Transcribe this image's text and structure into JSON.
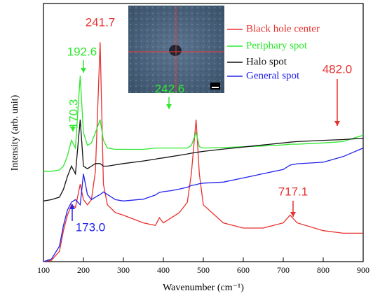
{
  "chart_data": {
    "type": "line",
    "x_label": "Wavenumber (cm⁻¹)",
    "y_label": "Intensity (arb. unit)",
    "x": [
      100,
      120,
      140,
      150,
      160,
      170,
      180,
      192,
      200,
      210,
      220,
      230,
      241.7,
      250,
      260,
      280,
      300,
      350,
      380,
      390,
      400,
      420,
      440,
      460,
      470,
      482,
      490,
      500,
      550,
      600,
      650,
      700,
      717,
      735,
      800,
      850,
      900
    ],
    "series": [
      {
        "name": "Black hole center",
        "color": "#e8312f",
        "values": [
          0,
          0.5,
          4,
          12,
          18,
          22,
          21,
          30,
          24,
          22,
          24,
          35,
          85,
          30,
          22,
          19,
          18,
          15,
          14,
          17,
          15,
          17,
          19,
          23,
          34,
          55,
          34,
          22,
          15,
          13,
          13,
          15,
          18,
          15,
          12,
          11,
          11
        ]
      },
      {
        "name": "Periphary spot",
        "color": "#2ee82e",
        "values": [
          35,
          35,
          35.5,
          37,
          41,
          47,
          44,
          72,
          50,
          45,
          46,
          50,
          55,
          47,
          44,
          43.5,
          43.5,
          43.5,
          44,
          44,
          44,
          44,
          44,
          44,
          45,
          50,
          44.5,
          44,
          44.2,
          44.5,
          44.8,
          45.2,
          45.5,
          45.5,
          46,
          46.5,
          49
        ]
      },
      {
        "name": "Halo spot",
        "color": "#111111",
        "values": [
          23.5,
          24,
          25,
          28,
          33,
          37,
          34,
          55,
          37,
          36,
          37,
          38,
          38,
          37,
          37,
          37.5,
          38,
          39,
          39.7,
          40,
          40.2,
          40.7,
          41.2,
          41.7,
          42,
          42.3,
          42.5,
          42.7,
          43.6,
          44.4,
          45.2,
          46,
          46.3,
          46.5,
          47,
          47.3,
          47.8
        ]
      },
      {
        "name": "General spot",
        "color": "#2222ee",
        "values": [
          0,
          1,
          6,
          14,
          20,
          23,
          24,
          22,
          34,
          26,
          24,
          25,
          26,
          27,
          26,
          24,
          23.5,
          24.2,
          25.8,
          26.8,
          27.1,
          27.5,
          28.1,
          28.8,
          29.5,
          29.8,
          30.2,
          30.4,
          30.8,
          32.4,
          34.1,
          35.7,
          37.4,
          37.9,
          38.5,
          40.7,
          44
        ]
      }
    ],
    "annotations": [
      {
        "text": "241.7",
        "color": "#e8312f"
      },
      {
        "text": "192.6",
        "color": "#2ee82e"
      },
      {
        "text": "170.3",
        "color": "#2ee82e"
      },
      {
        "text": "242.6",
        "color": "#2ee82e"
      },
      {
        "text": "482.0",
        "color": "#e8312f"
      },
      {
        "text": "717.1",
        "color": "#e8312f"
      },
      {
        "text": "173.0",
        "color": "#2222ee"
      }
    ],
    "xlim": [
      100,
      900
    ],
    "xticks": [
      100,
      200,
      300,
      400,
      500,
      600,
      700,
      800,
      900
    ],
    "ylim": [
      0,
      100
    ]
  }
}
